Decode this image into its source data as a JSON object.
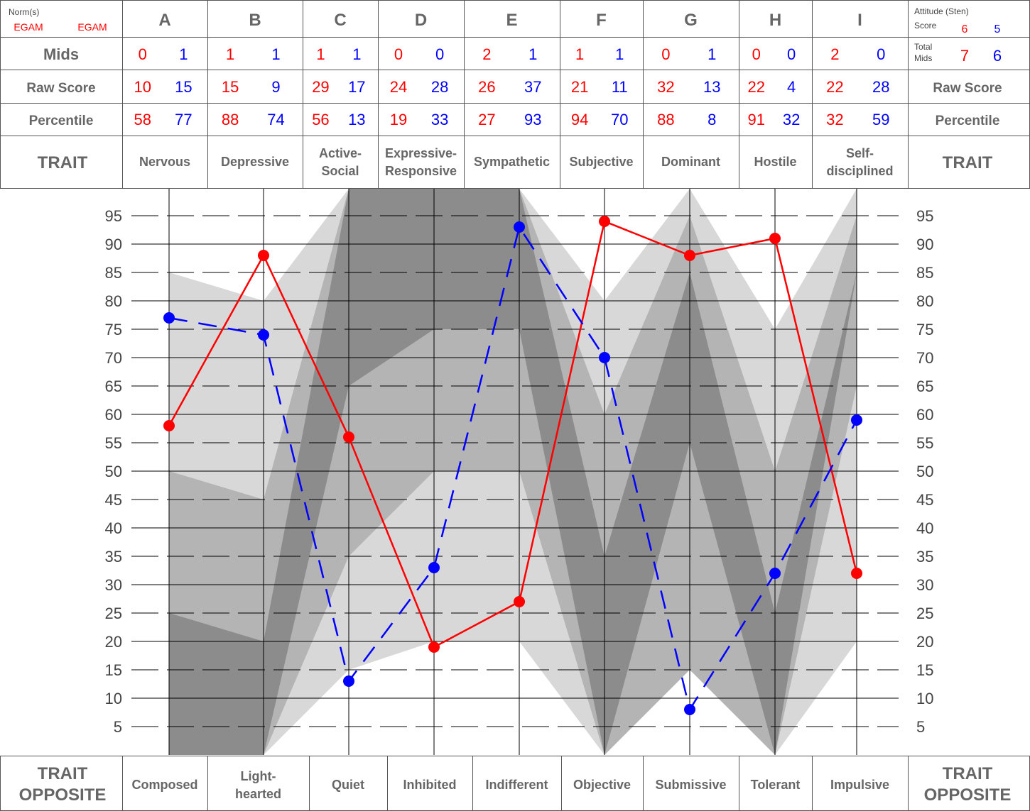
{
  "header": {
    "norms_label": "Norm(s)",
    "norm1": "EGAM",
    "norm2": "EGAM",
    "letters": [
      "A",
      "B",
      "C",
      "D",
      "E",
      "F",
      "G",
      "H",
      "I"
    ],
    "attitude_label_1": "Attitude (Sten)",
    "attitude_label_2": "Score",
    "attitude_red": "6",
    "attitude_blue": "5"
  },
  "rows": {
    "mids_label": "Mids",
    "raw_label": "Raw Score",
    "percentile_label": "Percentile",
    "trait_label": "TRAIT",
    "total_mids_label_1": "Total",
    "total_mids_label_2": "Mids",
    "total_mids_red": "7",
    "total_mids_blue": "6",
    "mids_red": [
      "0",
      "1",
      "1",
      "0",
      "2",
      "1",
      "0",
      "0",
      "2"
    ],
    "mids_blue": [
      "1",
      "1",
      "1",
      "0",
      "1",
      "1",
      "1",
      "0",
      "0"
    ],
    "raw_red": [
      "10",
      "15",
      "29",
      "24",
      "26",
      "21",
      "32",
      "22",
      "22"
    ],
    "raw_blue": [
      "15",
      "9",
      "17",
      "28",
      "37",
      "11",
      "13",
      "4",
      "28"
    ],
    "pct_red": [
      "58",
      "88",
      "56",
      "19",
      "27",
      "94",
      "88",
      "91",
      "32"
    ],
    "pct_blue": [
      "77",
      "74",
      "13",
      "33",
      "93",
      "70",
      "8",
      "32",
      "59"
    ]
  },
  "traits": [
    [
      "Nervous"
    ],
    [
      "Depressive"
    ],
    [
      "Active-",
      "Social"
    ],
    [
      "Expressive-",
      "Responsive"
    ],
    [
      "Sympathetic"
    ],
    [
      "Subjective"
    ],
    [
      "Dominant"
    ],
    [
      "Hostile"
    ],
    [
      "Self-",
      "disciplined"
    ]
  ],
  "opposites_label": [
    "TRAIT",
    "OPPOSITE"
  ],
  "opposites": [
    [
      "Composed"
    ],
    [
      "Light-",
      "hearted"
    ],
    [
      "Quiet"
    ],
    [
      "Inhibited"
    ],
    [
      "Indifferent"
    ],
    [
      "Objective"
    ],
    [
      "Submissive"
    ],
    [
      "Tolerant"
    ],
    [
      "Impulsive"
    ]
  ],
  "colors": {
    "red": "#ff0000",
    "blue": "#0000ff",
    "band_light": "#d8d8d8",
    "band_mid": "#b4b4b4",
    "band_dark": "#8c8c8c"
  },
  "chart_data": {
    "type": "line",
    "categories": [
      "A",
      "B",
      "C",
      "D",
      "E",
      "F",
      "G",
      "H",
      "I"
    ],
    "series": [
      {
        "color": "#ff0000",
        "style": "solid",
        "values": [
          58,
          88,
          56,
          19,
          27,
          94,
          88,
          91,
          32
        ]
      },
      {
        "color": "#0000ff",
        "style": "dashed",
        "values": [
          77,
          74,
          13,
          33,
          93,
          70,
          8,
          32,
          59
        ]
      }
    ],
    "y_ticks": [
      5,
      10,
      15,
      20,
      25,
      30,
      35,
      40,
      45,
      50,
      55,
      60,
      65,
      70,
      75,
      80,
      85,
      90,
      95
    ],
    "ylim": [
      0,
      100
    ],
    "grid": "dashed horizontal",
    "bands": [
      {
        "tone": "light",
        "points": [
          [
            0,
            85
          ],
          [
            1,
            80
          ],
          [
            2,
            100
          ],
          [
            4,
            100
          ],
          [
            5,
            80
          ],
          [
            6,
            100
          ],
          [
            7,
            75
          ],
          [
            8,
            100
          ],
          [
            8,
            20
          ],
          [
            7,
            0
          ],
          [
            6,
            35
          ],
          [
            5,
            0
          ],
          [
            4,
            20
          ],
          [
            3,
            20
          ],
          [
            2,
            15
          ],
          [
            1,
            0
          ],
          [
            0,
            0
          ]
        ]
      },
      {
        "tone": "mid",
        "points": [
          [
            0,
            50
          ],
          [
            1,
            45
          ],
          [
            2,
            100
          ],
          [
            4,
            100
          ],
          [
            5,
            60
          ],
          [
            6,
            95
          ],
          [
            7,
            50
          ],
          [
            8,
            95
          ],
          [
            8,
            65
          ],
          [
            7,
            0
          ],
          [
            6,
            15
          ],
          [
            5,
            0
          ],
          [
            4,
            50
          ],
          [
            3,
            50
          ],
          [
            2,
            35
          ],
          [
            1,
            0
          ],
          [
            0,
            0
          ]
        ]
      },
      {
        "tone": "dark",
        "points": [
          [
            0,
            25
          ],
          [
            1,
            20
          ],
          [
            2,
            100
          ],
          [
            4,
            100
          ],
          [
            5,
            35
          ],
          [
            6,
            85
          ],
          [
            7,
            25
          ],
          [
            8,
            85
          ],
          [
            8,
            85
          ],
          [
            7,
            0
          ],
          [
            6,
            55
          ],
          [
            5,
            0
          ],
          [
            4,
            75
          ],
          [
            3,
            75
          ],
          [
            2,
            65
          ],
          [
            1,
            0
          ],
          [
            0,
            0
          ]
        ]
      }
    ]
  }
}
